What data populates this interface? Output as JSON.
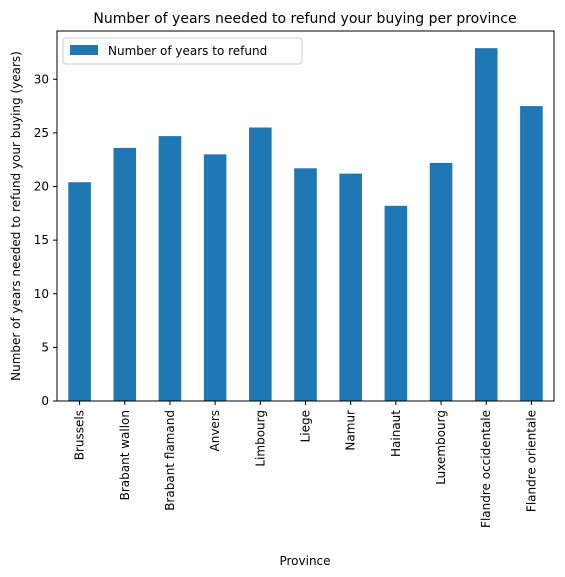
{
  "chart_data": {
    "type": "bar",
    "title": "Number of years needed to refund your buying per province",
    "xlabel": "Province",
    "ylabel": "Number of years needed to refund your buying (years)",
    "categories": [
      "Brussels",
      "Brabant wallon",
      "Brabant flamand",
      "Anvers",
      "Limbourg",
      "Liege",
      "Namur",
      "Hainaut",
      "Luxembourg",
      "Flandre occidentale",
      "Flandre orientale"
    ],
    "series": [
      {
        "name": "Number of years to refund",
        "values": [
          20.4,
          23.6,
          24.7,
          23.0,
          25.5,
          21.7,
          21.2,
          18.2,
          22.2,
          32.9,
          27.5
        ],
        "color": "#1f77b4"
      }
    ],
    "ylim": [
      0,
      34.5
    ],
    "yticks": [
      0,
      5,
      10,
      15,
      20,
      25,
      30
    ],
    "legend": {
      "position": "top-left"
    },
    "grid": false
  }
}
